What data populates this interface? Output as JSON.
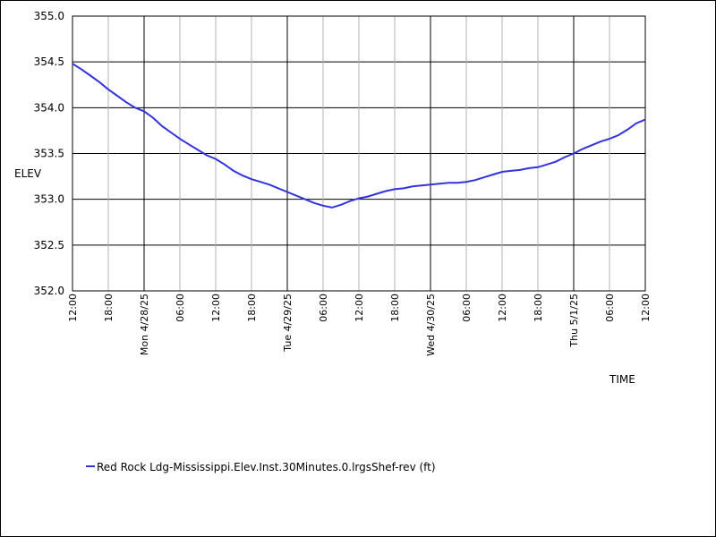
{
  "chart_data": {
    "type": "line",
    "xlabel": "TIME",
    "ylabel": "ELEV",
    "ylim": [
      352.0,
      355.0
    ],
    "y_ticks": [
      "352.0",
      "352.5",
      "353.0",
      "353.5",
      "354.0",
      "354.5",
      "355.0"
    ],
    "x_ticks": [
      {
        "label": "12:00",
        "major": false
      },
      {
        "label": "18:00",
        "major": false
      },
      {
        "label": "Mon 4/28/25",
        "major": true
      },
      {
        "label": "06:00",
        "major": false
      },
      {
        "label": "12:00",
        "major": false
      },
      {
        "label": "18:00",
        "major": false
      },
      {
        "label": "Tue 4/29/25",
        "major": true
      },
      {
        "label": "06:00",
        "major": false
      },
      {
        "label": "12:00",
        "major": false
      },
      {
        "label": "18:00",
        "major": false
      },
      {
        "label": "Wed 4/30/25",
        "major": true
      },
      {
        "label": "06:00",
        "major": false
      },
      {
        "label": "12:00",
        "major": false
      },
      {
        "label": "18:00",
        "major": false
      },
      {
        "label": "Thu 5/1/25",
        "major": true
      },
      {
        "label": "06:00",
        "major": false
      },
      {
        "label": "12:00",
        "major": false
      }
    ],
    "grid": true,
    "legend_position": "bottom-left",
    "series": [
      {
        "name": "Red Rock Ldg-Mississippi.Elev.Inst.30Minutes.0.lrgsShef-rev (ft)",
        "color": "#3333dd",
        "x_hours": [
          0,
          3,
          6,
          9,
          12,
          15,
          18,
          21,
          24,
          27,
          30,
          33,
          36,
          39,
          42,
          45,
          48,
          51,
          54,
          57,
          60,
          63,
          66,
          69,
          72,
          75,
          78,
          81,
          84,
          87,
          90,
          93,
          96,
          99,
          102,
          105,
          108,
          111,
          114,
          117,
          120,
          123,
          126,
          129,
          132,
          135,
          138,
          141,
          144,
          147,
          150,
          153,
          156,
          159,
          162,
          165,
          168,
          171,
          174,
          177,
          180,
          183,
          186,
          189,
          192
        ],
        "values": [
          354.48,
          354.42,
          354.35,
          354.28,
          354.2,
          354.13,
          354.06,
          354.0,
          353.96,
          353.89,
          353.8,
          353.73,
          353.66,
          353.6,
          353.54,
          353.48,
          353.44,
          353.38,
          353.31,
          353.26,
          353.22,
          353.19,
          353.16,
          353.12,
          353.08,
          353.04,
          353.0,
          352.96,
          352.93,
          352.91,
          352.94,
          352.98,
          353.01,
          353.03,
          353.06,
          353.09,
          353.11,
          353.12,
          353.14,
          353.15,
          353.16,
          353.17,
          353.18,
          353.18,
          353.19,
          353.21,
          353.24,
          353.27,
          353.3,
          353.31,
          353.32,
          353.34,
          353.35,
          353.38,
          353.41,
          353.46,
          353.5,
          353.55,
          353.59,
          353.63,
          353.66,
          353.7,
          353.76,
          353.83,
          353.87
        ]
      }
    ]
  }
}
